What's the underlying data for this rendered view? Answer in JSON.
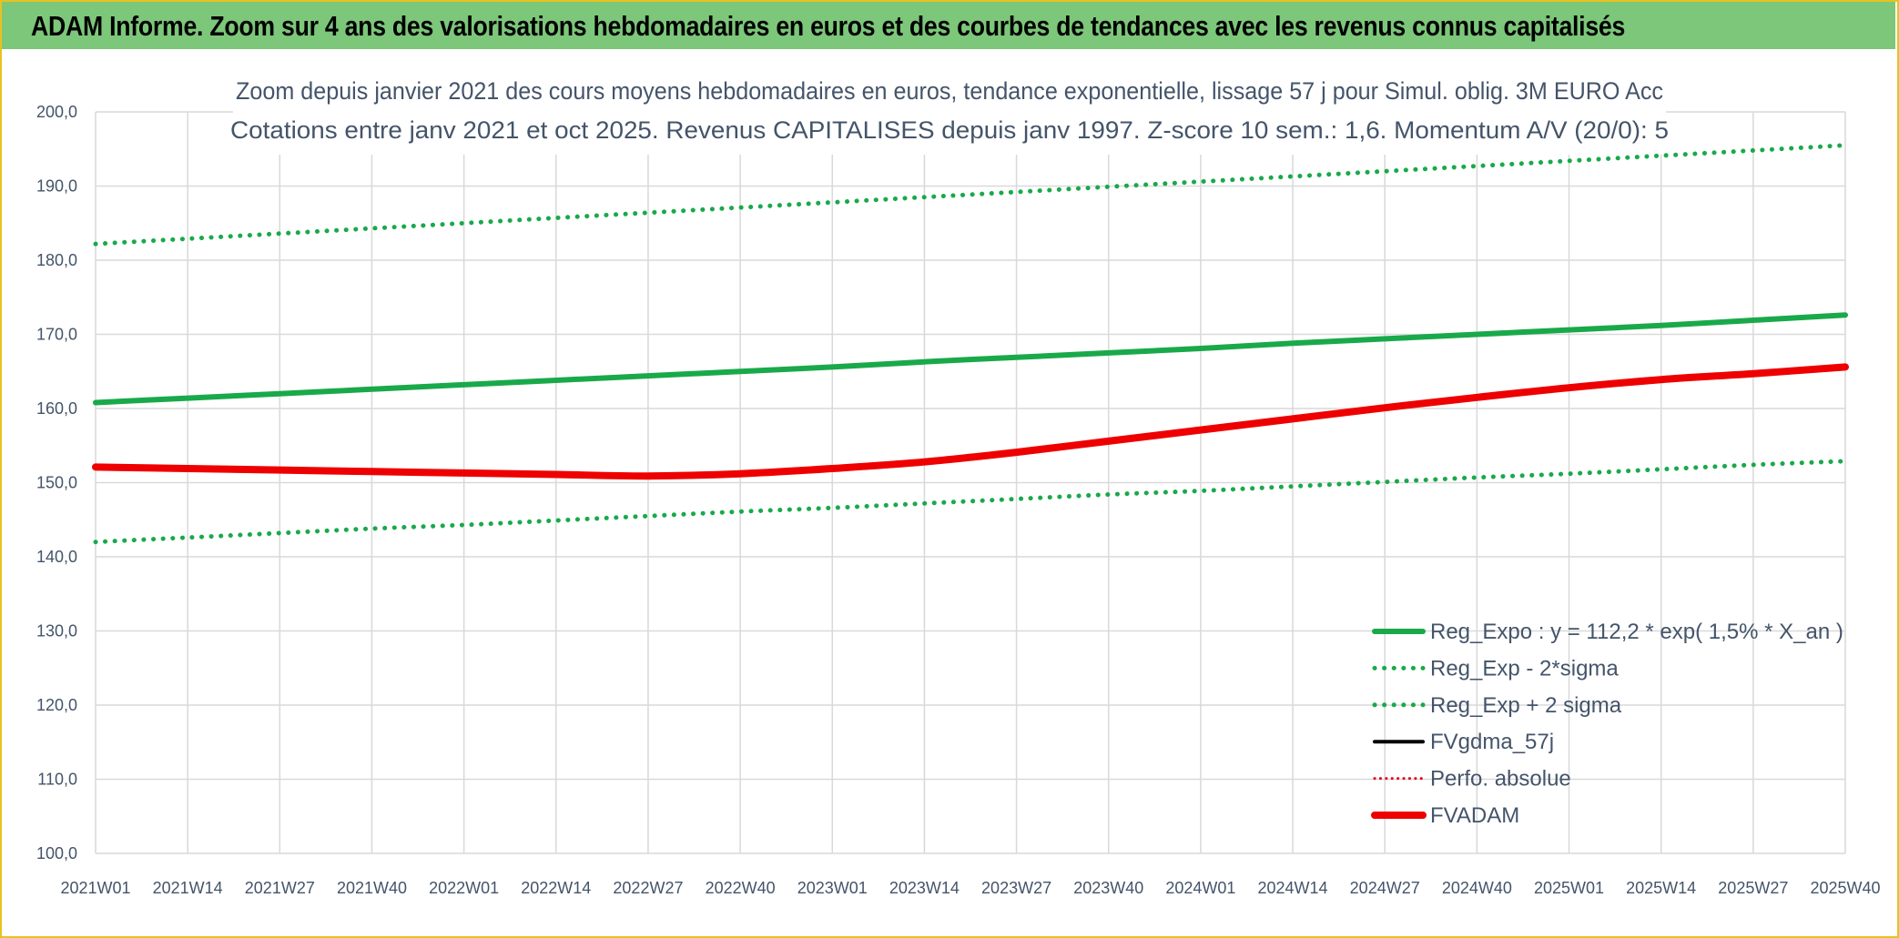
{
  "banner": {
    "title": "ADAM Informe. Zoom sur 4 ans des valorisations hebdomadaires en euros et des courbes de tendances avec les revenus connus capitalisés"
  },
  "chart_data": {
    "type": "line",
    "title": "Zoom depuis janvier 2021 des cours moyens hebdomadaires en euros, tendance exponentielle, lissage 57 j pour Simul. oblig. 3M EURO Acc",
    "subtitle": "Cotations entre janv 2021 et oct 2025. Revenus CAPITALISES depuis janv 1997. Z-score 10 sem.: 1,6. Momentum A/V (20/0): 5",
    "xlabel": "",
    "ylabel": "",
    "ylim": [
      100,
      200
    ],
    "y_ticks": [
      "100,0",
      "110,0",
      "120,0",
      "130,0",
      "140,0",
      "150,0",
      "160,0",
      "170,0",
      "180,0",
      "190,0",
      "200,0"
    ],
    "x_ticks": [
      "2021W01",
      "2021W14",
      "2021W27",
      "2021W40",
      "2022W01",
      "2022W14",
      "2022W27",
      "2022W40",
      "2023W01",
      "2023W14",
      "2023W27",
      "2023W40",
      "2024W01",
      "2024W14",
      "2024W27",
      "2024W40",
      "2025W01",
      "2025W14",
      "2025W27",
      "2025W40"
    ],
    "grid": true,
    "legend_position": "bottom-right",
    "series": [
      {
        "name": "Reg_Expo : y = 112,2 * exp( 1,5% *  X_an )",
        "color": "#19a94a",
        "style": "solid",
        "width": 6,
        "values": [
          160.8,
          161.4,
          162.0,
          162.6,
          163.2,
          163.8,
          164.4,
          165.0,
          165.6,
          166.3,
          166.9,
          167.5,
          168.1,
          168.8,
          169.4,
          170.0,
          170.6,
          171.2,
          171.9,
          172.6
        ]
      },
      {
        "name": "Reg_Exp - 2*sigma",
        "color": "#19a94a",
        "style": "dotted",
        "width": 5,
        "values": [
          142.0,
          142.6,
          143.2,
          143.8,
          144.3,
          144.9,
          145.5,
          146.1,
          146.6,
          147.2,
          147.8,
          148.4,
          148.9,
          149.5,
          150.1,
          150.7,
          151.2,
          151.8,
          152.4,
          152.9
        ]
      },
      {
        "name": "Reg_Exp + 2 sigma",
        "color": "#19a94a",
        "style": "dotted",
        "width": 5,
        "values": [
          182.2,
          182.9,
          183.6,
          184.3,
          185.0,
          185.7,
          186.4,
          187.1,
          187.8,
          188.5,
          189.2,
          189.9,
          190.6,
          191.3,
          192.0,
          192.7,
          193.4,
          194.1,
          194.8,
          195.5
        ]
      },
      {
        "name": "FVgdma_57j",
        "color": "#000000",
        "style": "solid",
        "width": 4,
        "values": []
      },
      {
        "name": "Perfo. absolue",
        "color": "#e3001b",
        "style": "dotted",
        "width": 3,
        "values": []
      },
      {
        "name": "FVADAM",
        "color": "#ee0000",
        "style": "solid",
        "width": 8,
        "values": [
          152.1,
          151.9,
          151.7,
          151.5,
          151.3,
          151.1,
          150.9,
          151.2,
          151.9,
          152.8,
          154.1,
          155.6,
          157.1,
          158.6,
          160.1,
          161.5,
          162.8,
          163.9,
          164.7,
          165.6
        ]
      }
    ]
  }
}
